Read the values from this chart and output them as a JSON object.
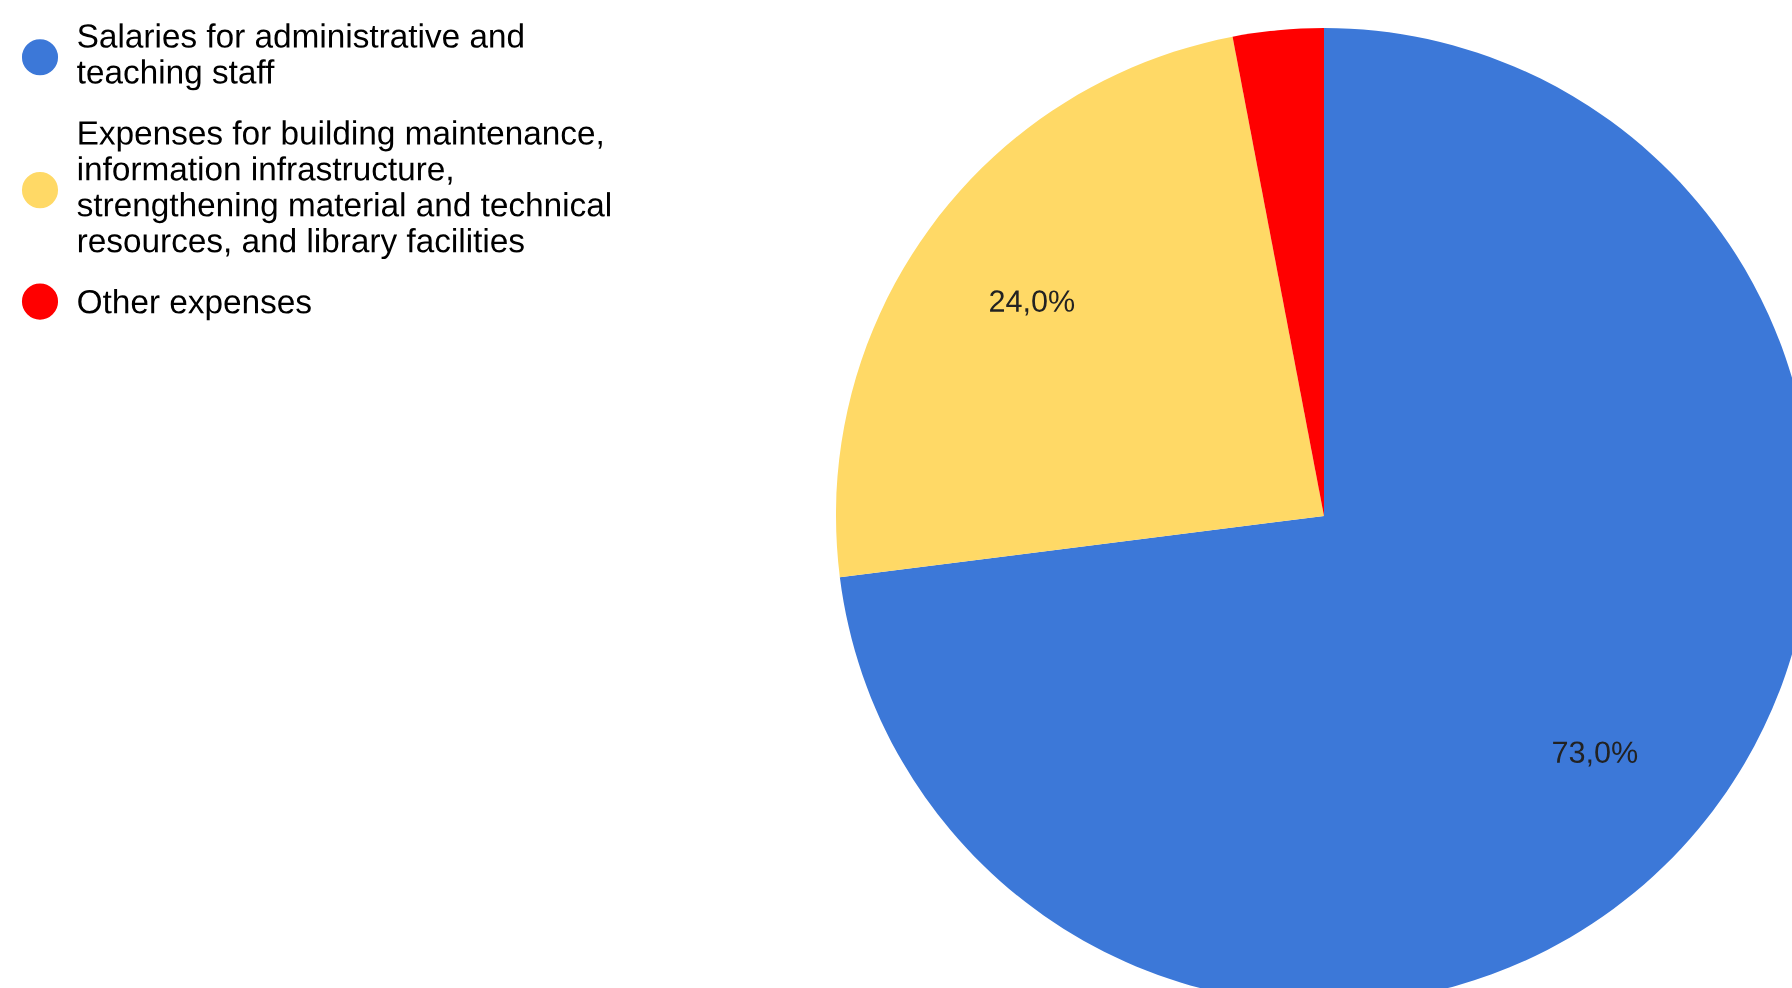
{
  "chart_data": {
    "type": "pie",
    "categories": [
      "Salaries for administrative and\nteaching staff",
      "Expenses for building maintenance,\ninformation infrastructure,\nstrengthening material and technical\nresources, and library facilities",
      "Other expenses"
    ],
    "values": [
      73,
      24,
      3
    ],
    "colors": [
      "#3c78d8",
      "#ffd966",
      "#ff0000"
    ],
    "value_labels": [
      "73,0%",
      "24,0%",
      null
    ],
    "legend": "top left"
  }
}
